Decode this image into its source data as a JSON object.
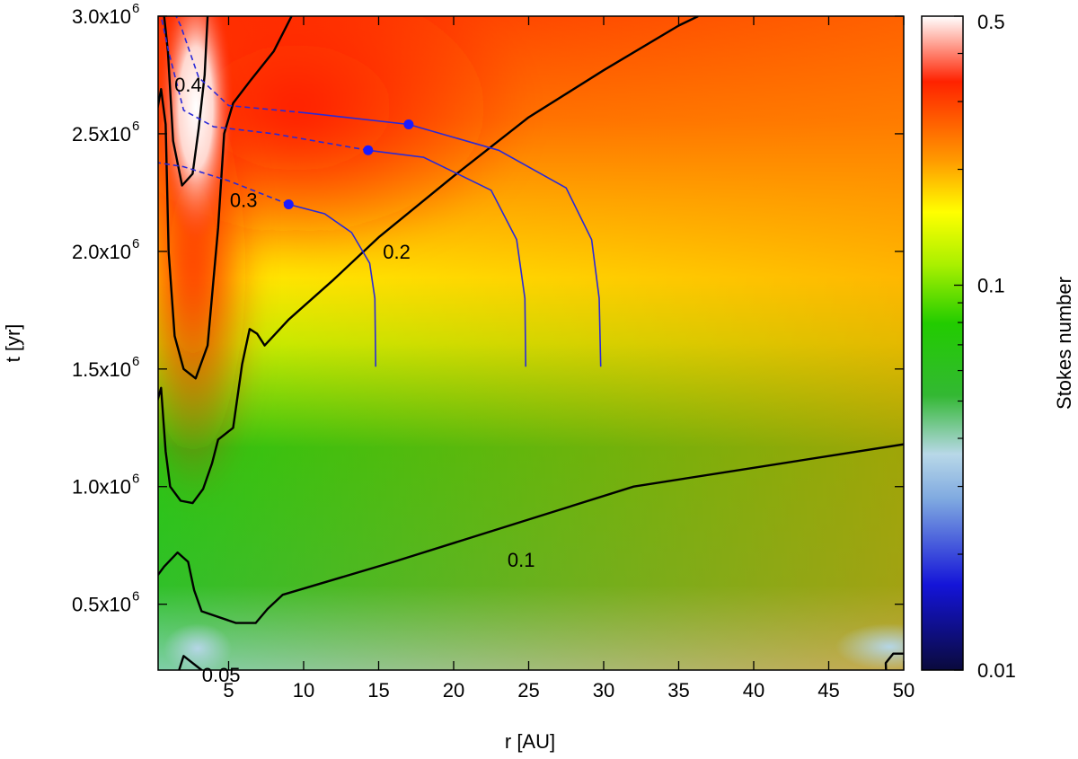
{
  "chart_data": {
    "type": "heatmap",
    "title": "",
    "xlabel": "r [AU]",
    "ylabel": "t [yr]",
    "colorbar_label": "Stokes number",
    "xlim": [
      0,
      50
    ],
    "ylim": [
      100000,
      3000000
    ],
    "x_ticks": [
      {
        "value": 5,
        "label": "5"
      },
      {
        "value": 10,
        "label": "10"
      },
      {
        "value": 15,
        "label": "15"
      },
      {
        "value": 20,
        "label": "20"
      },
      {
        "value": 25,
        "label": "25"
      },
      {
        "value": 30,
        "label": "30"
      },
      {
        "value": 35,
        "label": "35"
      },
      {
        "value": 40,
        "label": "40"
      },
      {
        "value": 45,
        "label": "45"
      },
      {
        "value": 50,
        "label": "50"
      }
    ],
    "y_ticks": [
      {
        "value": 500000,
        "label": "0.5x10",
        "exp": "6"
      },
      {
        "value": 1000000,
        "label": "1.0x10",
        "exp": "6"
      },
      {
        "value": 1500000,
        "label": "1.5x10",
        "exp": "6"
      },
      {
        "value": 2000000,
        "label": "2.0x10",
        "exp": "6"
      },
      {
        "value": 2500000,
        "label": "2.5x10",
        "exp": "6"
      },
      {
        "value": 3000000,
        "label": "3.0x10",
        "exp": "6"
      }
    ],
    "colorbar": {
      "scale": "log",
      "range": [
        0.01,
        0.5
      ],
      "ticks": [
        {
          "value": 0.5,
          "label": "0.5"
        },
        {
          "value": 0.1,
          "label": "0.1"
        },
        {
          "value": 0.01,
          "label": "0.01"
        }
      ],
      "colors": [
        "#0a0a3c",
        "#1414d8",
        "#7ea8e0",
        "#b8d8e8",
        "#33b833",
        "#22cc00",
        "#aaf000",
        "#ffff00",
        "#ff9900",
        "#ff2200",
        "#ffffff"
      ]
    },
    "contours": [
      {
        "level": 0.05,
        "label": "0.05",
        "label_at": [
          4.5,
          200000
        ],
        "points": [
          [
            1.8,
            100000
          ],
          [
            1.6,
            200000
          ],
          [
            2.0,
            280000
          ],
          [
            3.2,
            220000
          ],
          [
            3.7,
            100000
          ]
        ]
      },
      {
        "level": 0.05,
        "label": "",
        "points": [
          [
            48.9,
            100000
          ],
          [
            48.8,
            250000
          ],
          [
            49.3,
            290000
          ],
          [
            50,
            290000
          ]
        ]
      },
      {
        "level": 0.1,
        "label": "0.1",
        "label_at": [
          24.5,
          690000
        ],
        "points": [
          [
            0,
            600000
          ],
          [
            0.7,
            660000
          ],
          [
            1.6,
            720000
          ],
          [
            2.3,
            680000
          ],
          [
            2.7,
            560000
          ],
          [
            3.2,
            470000
          ],
          [
            5.5,
            420000
          ],
          [
            6.8,
            420000
          ],
          [
            7.6,
            480000
          ],
          [
            8.6,
            540000
          ],
          [
            16,
            680000
          ],
          [
            25,
            860000
          ],
          [
            32,
            1000000
          ],
          [
            40,
            1080000
          ],
          [
            50,
            1180000
          ]
        ]
      },
      {
        "level": 0.2,
        "label": "0.2",
        "label_at": [
          16.2,
          2000000
        ],
        "points": [
          [
            0,
            1310000
          ],
          [
            0.5,
            1420000
          ],
          [
            0.8,
            1150000
          ],
          [
            1.1,
            1000000
          ],
          [
            1.8,
            940000
          ],
          [
            2.6,
            930000
          ],
          [
            3.3,
            990000
          ],
          [
            3.9,
            1100000
          ],
          [
            4.3,
            1200000
          ],
          [
            5.3,
            1250000
          ],
          [
            5.9,
            1520000
          ],
          [
            6.4,
            1670000
          ],
          [
            6.9,
            1650000
          ],
          [
            7.4,
            1600000
          ],
          [
            9,
            1710000
          ],
          [
            12,
            1880000
          ],
          [
            15,
            2060000
          ],
          [
            20,
            2320000
          ],
          [
            25,
            2570000
          ],
          [
            30,
            2770000
          ],
          [
            35,
            2960000
          ],
          [
            36.3,
            3000000
          ]
        ]
      },
      {
        "level": 0.3,
        "label": "0.3",
        "label_at": [
          6.0,
          2220000
        ],
        "points": [
          [
            0,
            2520000
          ],
          [
            0.5,
            2690000
          ],
          [
            0.8,
            2540000
          ],
          [
            1.0,
            2000000
          ],
          [
            1.4,
            1640000
          ],
          [
            2.0,
            1500000
          ],
          [
            2.8,
            1460000
          ],
          [
            3.6,
            1600000
          ],
          [
            4.3,
            2100000
          ],
          [
            4.7,
            2500000
          ],
          [
            5.3,
            2630000
          ],
          [
            6.5,
            2730000
          ],
          [
            8,
            2850000
          ],
          [
            9.2,
            3000000
          ]
        ]
      },
      {
        "level": 0.4,
        "label": "0.4",
        "label_at": [
          2.3,
          2710000
        ],
        "points": [
          [
            0.7,
            3000000
          ],
          [
            0.95,
            2850000
          ],
          [
            1.3,
            2470000
          ],
          [
            1.9,
            2280000
          ],
          [
            2.6,
            2330000
          ],
          [
            3.0,
            2520000
          ],
          [
            3.4,
            2750000
          ],
          [
            3.6,
            3000000
          ]
        ]
      }
    ],
    "tracks": [
      {
        "points": [
          [
            14.8,
            1510000
          ],
          [
            14.75,
            1800000
          ],
          [
            14.4,
            1950000
          ],
          [
            13.2,
            2080000
          ],
          [
            11.4,
            2160000
          ],
          [
            9.0,
            2200000
          ],
          [
            5.0,
            2300000
          ],
          [
            2.0,
            2360000
          ],
          [
            0,
            2380000
          ]
        ],
        "marker": [
          9.0,
          2200000
        ],
        "dash_after": 5
      },
      {
        "points": [
          [
            24.8,
            1510000
          ],
          [
            24.75,
            1800000
          ],
          [
            24.2,
            2050000
          ],
          [
            22.5,
            2260000
          ],
          [
            18.0,
            2400000
          ],
          [
            14.3,
            2430000
          ],
          [
            8.0,
            2500000
          ],
          [
            4.0,
            2530000
          ],
          [
            2.0,
            2600000
          ],
          [
            1.0,
            2850000
          ],
          [
            0.5,
            3000000
          ]
        ],
        "marker": [
          14.3,
          2430000
        ],
        "dash_after": 5
      },
      {
        "points": [
          [
            29.8,
            1510000
          ],
          [
            29.7,
            1800000
          ],
          [
            29.2,
            2050000
          ],
          [
            27.5,
            2270000
          ],
          [
            23.0,
            2430000
          ],
          [
            17.0,
            2540000
          ],
          [
            10.0,
            2590000
          ],
          [
            5.0,
            2620000
          ],
          [
            3.0,
            2740000
          ],
          [
            1.8,
            2960000
          ],
          [
            1.5,
            3000000
          ]
        ],
        "marker": [
          17.0,
          2540000
        ],
        "dash_after": 6
      }
    ]
  }
}
